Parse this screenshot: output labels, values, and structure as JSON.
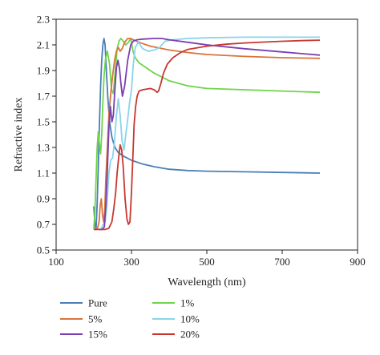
{
  "chart_data": {
    "type": "line",
    "xlabel": "Wavelength (nm)",
    "ylabel": "Refractive index",
    "xlim": [
      100,
      900
    ],
    "ylim": [
      0.5,
      2.3
    ],
    "xticks": [
      100,
      300,
      500,
      700,
      900
    ],
    "xtick_labels": [
      "100",
      "300",
      "500",
      "700",
      "900"
    ],
    "yticks": [
      0.5,
      0.7,
      0.9,
      1.1,
      1.3,
      1.5,
      1.7,
      1.9,
      2.1,
      2.3
    ],
    "ytick_labels": [
      "0.5",
      "0.7",
      "0.9",
      "1.1",
      "1.3",
      "1.5",
      "1.7",
      "1.9",
      "2.1",
      "2.3"
    ],
    "grid": false,
    "legend_placement": "bottom",
    "series": [
      {
        "name": "Pure",
        "color": "#4a7fb5",
        "points": [
          [
            200,
            0.84
          ],
          [
            203,
            0.7
          ],
          [
            206,
            0.66
          ],
          [
            209,
            0.86
          ],
          [
            212,
            1.15
          ],
          [
            215,
            1.48
          ],
          [
            218,
            1.78
          ],
          [
            221,
            1.98
          ],
          [
            224,
            2.1
          ],
          [
            227,
            2.15
          ],
          [
            230,
            2.1
          ],
          [
            233,
            1.92
          ],
          [
            237,
            1.7
          ],
          [
            242,
            1.5
          ],
          [
            248,
            1.38
          ],
          [
            256,
            1.3
          ],
          [
            265,
            1.26
          ],
          [
            280,
            1.23
          ],
          [
            300,
            1.2
          ],
          [
            330,
            1.17
          ],
          [
            360,
            1.15
          ],
          [
            400,
            1.13
          ],
          [
            450,
            1.12
          ],
          [
            500,
            1.115
          ],
          [
            600,
            1.11
          ],
          [
            700,
            1.105
          ],
          [
            800,
            1.1
          ]
        ]
      },
      {
        "name": "1%",
        "color": "#6fd44a",
        "points": [
          [
            200,
            0.66
          ],
          [
            203,
            0.8
          ],
          [
            206,
            1.05
          ],
          [
            209,
            1.3
          ],
          [
            212,
            1.42
          ],
          [
            215,
            1.33
          ],
          [
            218,
            1.25
          ],
          [
            221,
            1.4
          ],
          [
            224,
            1.65
          ],
          [
            227,
            1.85
          ],
          [
            231,
            1.99
          ],
          [
            236,
            2.05
          ],
          [
            242,
            1.95
          ],
          [
            247,
            1.75
          ],
          [
            252,
            1.72
          ],
          [
            257,
            1.9
          ],
          [
            262,
            2.07
          ],
          [
            267,
            2.13
          ],
          [
            272,
            2.15
          ],
          [
            278,
            2.13
          ],
          [
            285,
            2.1
          ],
          [
            292,
            2.12
          ],
          [
            298,
            2.15
          ],
          [
            304,
            2.05
          ],
          [
            310,
            2.0
          ],
          [
            320,
            1.96
          ],
          [
            340,
            1.92
          ],
          [
            360,
            1.88
          ],
          [
            380,
            1.85
          ],
          [
            400,
            1.82
          ],
          [
            450,
            1.78
          ],
          [
            500,
            1.76
          ],
          [
            600,
            1.75
          ],
          [
            700,
            1.74
          ],
          [
            800,
            1.73
          ]
        ]
      },
      {
        "name": "5%",
        "color": "#d9743a",
        "points": [
          [
            205,
            0.66
          ],
          [
            210,
            0.67
          ],
          [
            214,
            0.72
          ],
          [
            217,
            0.85
          ],
          [
            220,
            0.9
          ],
          [
            223,
            0.78
          ],
          [
            226,
            0.72
          ],
          [
            229,
            0.8
          ],
          [
            232,
            1.05
          ],
          [
            236,
            1.3
          ],
          [
            240,
            1.55
          ],
          [
            245,
            1.72
          ],
          [
            250,
            1.86
          ],
          [
            255,
            1.98
          ],
          [
            260,
            2.05
          ],
          [
            265,
            2.08
          ],
          [
            270,
            2.05
          ],
          [
            275,
            2.07
          ],
          [
            282,
            2.12
          ],
          [
            290,
            2.15
          ],
          [
            297,
            2.15
          ],
          [
            305,
            2.14
          ],
          [
            320,
            2.12
          ],
          [
            350,
            2.09
          ],
          [
            400,
            2.06
          ],
          [
            450,
            2.04
          ],
          [
            500,
            2.025
          ],
          [
            600,
            2.01
          ],
          [
            700,
            2.0
          ],
          [
            800,
            1.995
          ]
        ]
      },
      {
        "name": "10%",
        "color": "#8ad4ea",
        "points": [
          [
            215,
            0.66
          ],
          [
            220,
            0.67
          ],
          [
            225,
            0.7
          ],
          [
            230,
            0.72
          ],
          [
            235,
            0.85
          ],
          [
            240,
            1.1
          ],
          [
            245,
            1.2
          ],
          [
            250,
            1.22
          ],
          [
            255,
            1.35
          ],
          [
            260,
            1.55
          ],
          [
            265,
            1.68
          ],
          [
            270,
            1.55
          ],
          [
            275,
            1.35
          ],
          [
            280,
            1.28
          ],
          [
            285,
            1.4
          ],
          [
            290,
            1.52
          ],
          [
            295,
            1.65
          ],
          [
            300,
            1.75
          ],
          [
            305,
            1.95
          ],
          [
            310,
            2.08
          ],
          [
            318,
            2.12
          ],
          [
            330,
            2.07
          ],
          [
            345,
            2.05
          ],
          [
            360,
            2.06
          ],
          [
            375,
            2.08
          ],
          [
            380,
            2.1
          ],
          [
            390,
            2.13
          ],
          [
            410,
            2.14
          ],
          [
            450,
            2.15
          ],
          [
            500,
            2.155
          ],
          [
            600,
            2.16
          ],
          [
            700,
            2.16
          ],
          [
            800,
            2.16
          ]
        ]
      },
      {
        "name": "15%",
        "color": "#7b3fb0",
        "points": [
          [
            215,
            0.66
          ],
          [
            222,
            0.66
          ],
          [
            228,
            0.68
          ],
          [
            232,
            0.85
          ],
          [
            236,
            1.12
          ],
          [
            240,
            1.45
          ],
          [
            244,
            1.62
          ],
          [
            248,
            1.5
          ],
          [
            252,
            1.55
          ],
          [
            256,
            1.75
          ],
          [
            260,
            1.92
          ],
          [
            264,
            1.98
          ],
          [
            268,
            1.92
          ],
          [
            272,
            1.8
          ],
          [
            276,
            1.7
          ],
          [
            282,
            1.78
          ],
          [
            290,
            1.98
          ],
          [
            298,
            2.1
          ],
          [
            305,
            2.13
          ],
          [
            315,
            2.14
          ],
          [
            330,
            2.145
          ],
          [
            360,
            2.15
          ],
          [
            380,
            2.15
          ],
          [
            400,
            2.14
          ],
          [
            450,
            2.12
          ],
          [
            500,
            2.1
          ],
          [
            600,
            2.07
          ],
          [
            700,
            2.045
          ],
          [
            800,
            2.02
          ]
        ]
      },
      {
        "name": "20%",
        "color": "#c8372f",
        "points": [
          [
            200,
            0.66
          ],
          [
            215,
            0.66
          ],
          [
            230,
            0.66
          ],
          [
            240,
            0.67
          ],
          [
            248,
            0.72
          ],
          [
            253,
            0.82
          ],
          [
            258,
            0.95
          ],
          [
            262,
            1.1
          ],
          [
            266,
            1.22
          ],
          [
            270,
            1.32
          ],
          [
            274,
            1.28
          ],
          [
            278,
            1.15
          ],
          [
            283,
            0.9
          ],
          [
            288,
            0.74
          ],
          [
            292,
            0.7
          ],
          [
            296,
            0.72
          ],
          [
            300,
            0.95
          ],
          [
            304,
            1.25
          ],
          [
            307,
            1.48
          ],
          [
            311,
            1.62
          ],
          [
            315,
            1.7
          ],
          [
            320,
            1.74
          ],
          [
            330,
            1.75
          ],
          [
            350,
            1.76
          ],
          [
            360,
            1.75
          ],
          [
            368,
            1.73
          ],
          [
            372,
            1.74
          ],
          [
            378,
            1.8
          ],
          [
            385,
            1.88
          ],
          [
            395,
            1.95
          ],
          [
            410,
            2.0
          ],
          [
            430,
            2.04
          ],
          [
            450,
            2.065
          ],
          [
            500,
            2.09
          ],
          [
            550,
            2.105
          ],
          [
            600,
            2.115
          ],
          [
            650,
            2.122
          ],
          [
            700,
            2.128
          ],
          [
            750,
            2.133
          ],
          [
            800,
            2.137
          ]
        ]
      }
    ],
    "legend_order": [
      "Pure",
      "1%",
      "5%",
      "10%",
      "15%",
      "20%"
    ]
  }
}
